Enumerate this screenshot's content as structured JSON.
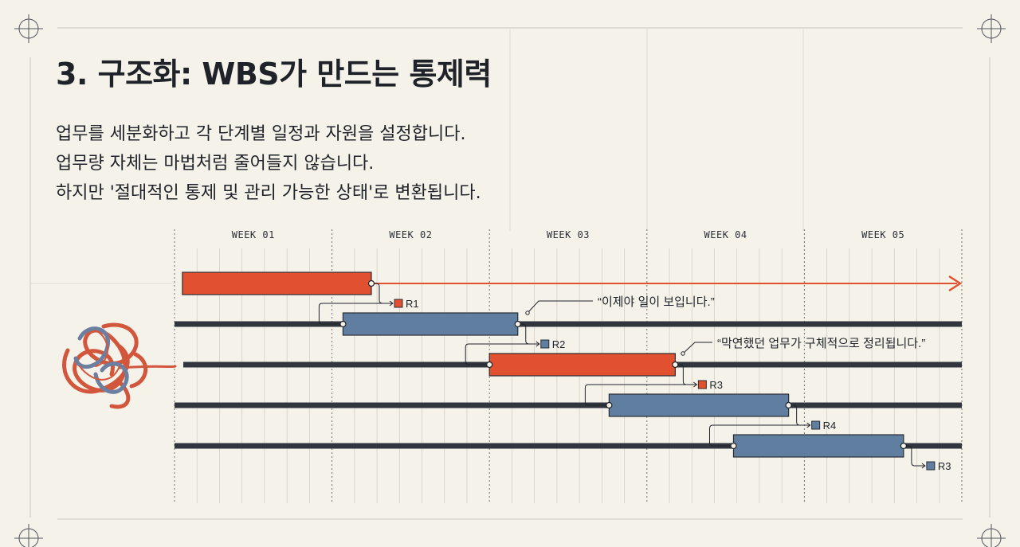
{
  "slide": {
    "title": "3. 구조화: WBS가 만드는 통제력",
    "body_lines": [
      "업무를 세분화하고 각 단계별 일정과 자원을 설정합니다.",
      "업무량 자체는 마법처럼 줄어들지 않습니다.",
      "하지만 '절대적인 통제 및 관리 가능한 상태'로 변환됩니다."
    ]
  },
  "chart_data": {
    "type": "gantt",
    "weeks": [
      "WEEK 01",
      "WEEK 02",
      "WEEK 03",
      "WEEK 04",
      "WEEK 05"
    ],
    "tasks": [
      {
        "lane": 0,
        "start_week": 0.05,
        "end_week": 1.25,
        "color": "#e2512f",
        "resource": "R1"
      },
      {
        "lane": 1,
        "start_week": 1.07,
        "end_week": 2.18,
        "color": "#5f7ea0",
        "resource": "R2"
      },
      {
        "lane": 2,
        "start_week": 2.0,
        "end_week": 3.18,
        "color": "#e2512f",
        "resource": "R3"
      },
      {
        "lane": 3,
        "start_week": 2.76,
        "end_week": 3.9,
        "color": "#5f7ea0",
        "resource": "R4"
      },
      {
        "lane": 4,
        "start_week": 3.55,
        "end_week": 4.63,
        "color": "#5f7ea0",
        "resource": "R3"
      }
    ],
    "annotations": [
      "“이제야 일이 보입니다.”",
      "“막연했던 업무가 구체적으로 정리됩니다.”"
    ],
    "colors": {
      "accent": "#e2512f",
      "blue": "#5f7ea0",
      "track": "#31353d",
      "grid": "#cfcac0"
    }
  }
}
